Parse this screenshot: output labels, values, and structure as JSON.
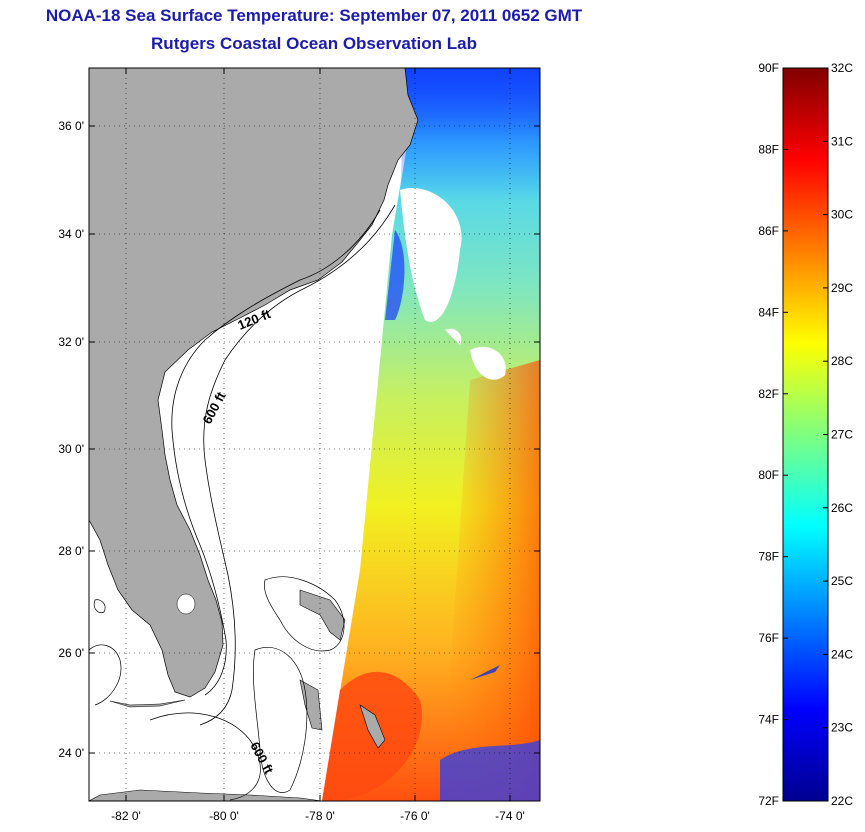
{
  "header": {
    "title": "NOAA-18 Sea Surface Temperature:  September 07, 2011 0652 GMT",
    "subtitle": "Rutgers Coastal Ocean Observation Lab"
  },
  "map": {
    "lat_ticks": [
      "36 0'",
      "34 0'",
      "32 0'",
      "30 0'",
      "28 0'",
      "26 0'",
      "24 0'"
    ],
    "lon_ticks": [
      "-82 0'",
      "-80 0'",
      "-78 0'",
      "-76 0'",
      "-74 0'"
    ],
    "contour_labels": [
      "120 ft",
      "600 ft",
      "600 ft"
    ],
    "colors": {
      "land": "#aaaaaa",
      "ocean": "#ffffff"
    }
  },
  "colorbar": {
    "f_labels": [
      "90F",
      "88F",
      "86F",
      "84F",
      "82F",
      "80F",
      "78F",
      "76F",
      "74F",
      "72F"
    ],
    "c_labels": [
      "32C",
      "31C",
      "30C",
      "29C",
      "28C",
      "27C",
      "26C",
      "25C",
      "24C",
      "23C",
      "22C"
    ],
    "colormap": "jet"
  }
}
